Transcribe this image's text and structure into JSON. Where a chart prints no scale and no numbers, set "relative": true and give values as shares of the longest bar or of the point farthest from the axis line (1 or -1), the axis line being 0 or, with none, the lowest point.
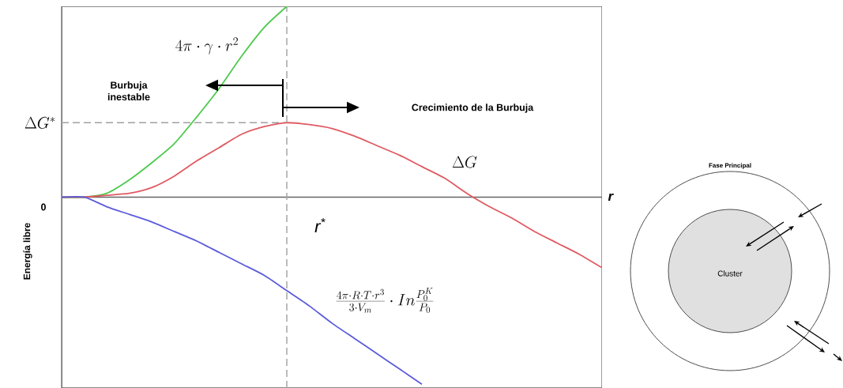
{
  "chart_data": {
    "type": "line",
    "relative": true,
    "xlabel": "r",
    "ylabel": "Energía libre",
    "categories": [
      null,
      null,
      null,
      null,
      null,
      null,
      null,
      null,
      null,
      null,
      null,
      null,
      null,
      null,
      null,
      null,
      null,
      null,
      null,
      null,
      null,
      null,
      null,
      null,
      null
    ],
    "series": [
      {
        "name": "4\\pi\\cdot\\gamma\\cdot r^{2}",
        "color": "#4cc94c",
        "values": [
          0,
          0,
          0.02,
          0.09,
          0.18,
          0.28,
          0.42,
          0.57,
          0.74,
          0.89,
          1.0,
          null,
          null,
          null,
          null,
          null,
          null,
          null,
          null,
          null,
          null,
          null,
          null,
          null,
          null
        ]
      },
      {
        "name": "\\Delta G",
        "color": "#e05a62",
        "values": [
          0,
          0,
          0.01,
          0.02,
          0.05,
          0.11,
          0.19,
          0.26,
          0.33,
          0.37,
          0.39,
          0.38,
          0.36,
          0.32,
          0.27,
          0.22,
          0.16,
          0.1,
          0.02,
          -0.05,
          -0.11,
          -0.18,
          -0.24,
          -0.3,
          -0.37
        ]
      },
      {
        "name": "\\frac{4\\pi\\cdot R\\cdot T\\cdot r^{3}}{3\\cdot V_{m}}\\cdot In\\frac{P_{0}^{K}}{P_{0}}",
        "color": "#5b5bdc",
        "values": [
          0,
          0,
          -0.05,
          -0.09,
          -0.13,
          -0.18,
          -0.23,
          -0.29,
          -0.35,
          -0.41,
          -0.49,
          -0.57,
          -0.66,
          -0.74,
          -0.82,
          -0.9,
          -0.98,
          null,
          null,
          null,
          null,
          null,
          null,
          null,
          null
        ]
      }
    ],
    "ref_lines": [
      {
        "axis": "y",
        "value": 0.39,
        "label": "\\Delta G^{*}",
        "color": "#a0a0a0",
        "line_style": "dashed"
      }
    ],
    "annotations": [
      "Burbuja inestable",
      "Crecimiento de la Burbuja",
      "0",
      "Fase Principal",
      "Cluster",
      "r$^{*}$"
    ]
  }
}
